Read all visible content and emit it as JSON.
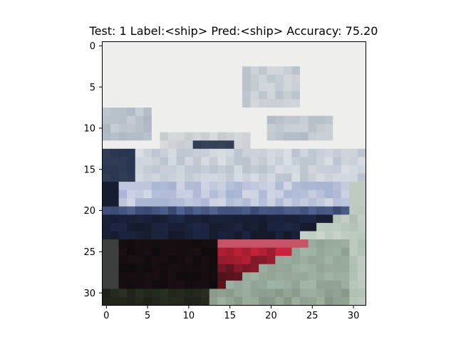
{
  "title": "Test: 1  Label:<ship>  Pred:<ship>  Accuracy: 75.20",
  "image": {
    "subject": "ship",
    "resolution": [
      32,
      32
    ]
  },
  "axes": {
    "x_ticks": [
      "0",
      "5",
      "10",
      "15",
      "20",
      "25",
      "30"
    ],
    "y_ticks": [
      "0",
      "5",
      "10",
      "15",
      "20",
      "25",
      "30"
    ],
    "x_range": [
      -0.5,
      31.5
    ],
    "y_range": [
      -0.5,
      31.5
    ]
  },
  "colors": {
    "sky": "#eeeeec",
    "hull_navy": "#1e2a4a",
    "hull_black": "#0d0a0c",
    "hull_red": "#d0243c",
    "water": "#a9bcae",
    "deck_white": "#e6e9ee"
  }
}
